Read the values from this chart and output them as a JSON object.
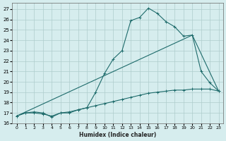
{
  "xlabel": "Humidex (Indice chaleur)",
  "background_color": "#d6edee",
  "grid_color": "#aecccc",
  "line_color": "#1e6b6b",
  "xlim": [
    -0.5,
    23.5
  ],
  "ylim": [
    16,
    27.6
  ],
  "yticks": [
    16,
    17,
    18,
    19,
    20,
    21,
    22,
    23,
    24,
    25,
    26,
    27
  ],
  "xticks": [
    0,
    1,
    2,
    3,
    4,
    5,
    6,
    7,
    8,
    9,
    10,
    11,
    12,
    13,
    14,
    15,
    16,
    17,
    18,
    19,
    20,
    21,
    22,
    23
  ],
  "curve_x": [
    0,
    1,
    2,
    3,
    4,
    5,
    6,
    7,
    8,
    9,
    10,
    11,
    12,
    13,
    14,
    15,
    16,
    17,
    18,
    19,
    20,
    21,
    22,
    23
  ],
  "curve_y": [
    16.7,
    17.0,
    17.1,
    17.0,
    16.6,
    17.0,
    17.0,
    17.3,
    17.5,
    19.0,
    20.8,
    22.2,
    23.0,
    25.9,
    26.2,
    27.1,
    26.6,
    25.8,
    25.3,
    24.4,
    24.5,
    21.0,
    19.9,
    19.1
  ],
  "upper_line_x": [
    0,
    20,
    23
  ],
  "upper_line_y": [
    16.7,
    24.5,
    19.1
  ],
  "lower_line_x": [
    0,
    1,
    2,
    3,
    4,
    5,
    6,
    7,
    8,
    9,
    10,
    11,
    12,
    13,
    14,
    15,
    16,
    17,
    18,
    19,
    20,
    21,
    22,
    23
  ],
  "lower_line_y": [
    16.7,
    17.0,
    17.0,
    16.9,
    16.7,
    17.0,
    17.1,
    17.3,
    17.5,
    17.7,
    17.9,
    18.1,
    18.3,
    18.5,
    18.7,
    18.9,
    19.0,
    19.1,
    19.2,
    19.2,
    19.3,
    19.3,
    19.3,
    19.1
  ]
}
